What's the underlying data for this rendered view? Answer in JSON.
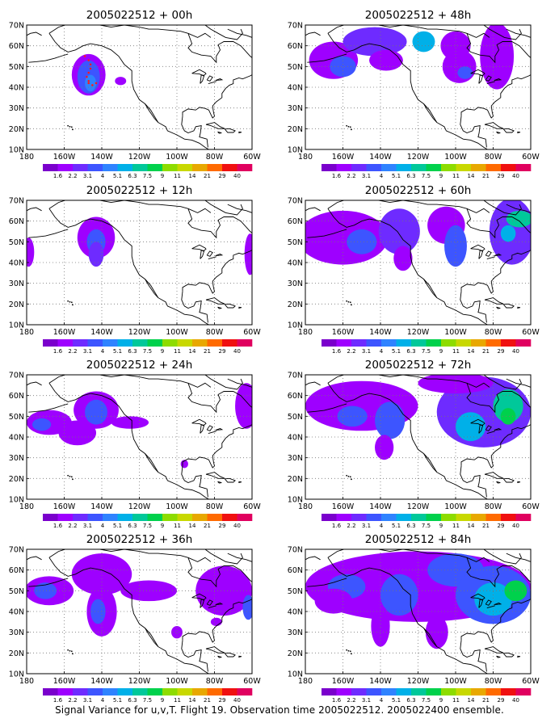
{
  "caption": "Signal Variance for u,v,T. Flight 19. Observation time 2005022512. 2005022400 ensemble.",
  "colors": {
    "scale": [
      "#7a00cc",
      "#9e00ff",
      "#6e2bff",
      "#3d55ff",
      "#2f83ff",
      "#00b0e8",
      "#00c89a",
      "#00d14c",
      "#8ddc00",
      "#c8d800",
      "#e8a800",
      "#ff6a00",
      "#f01010",
      "#e0005f"
    ],
    "coast": "#000000",
    "grid": "#777777",
    "obs_markers": "#ff1a1a"
  },
  "axes": {
    "lat_labels": [
      "10N",
      "20N",
      "30N",
      "40N",
      "50N",
      "60N",
      "70N"
    ],
    "lon_labels": [
      "180",
      "160W",
      "140W",
      "120W",
      "100W",
      "80W",
      "60W"
    ],
    "lon_range": [
      -180,
      -60
    ],
    "lat_range": [
      10,
      70
    ],
    "grid": "dotted"
  },
  "colorbar_labels": [
    "1.6",
    "2.2",
    "3.1",
    "4",
    "5.1",
    "6.3",
    "7.5",
    "9",
    "11",
    "14",
    "21",
    "29",
    "40"
  ],
  "chart_data": [
    {
      "type": "heatmap",
      "title": "2005022512 + 00h",
      "blobs": [
        {
          "lon": -147,
          "lat": 46,
          "rlon": 9,
          "rlat": 10,
          "level": 1
        },
        {
          "lon": -147,
          "lat": 45,
          "rlon": 6,
          "rlat": 8,
          "level": 3
        },
        {
          "lon": -146,
          "lat": 42,
          "rlon": 3,
          "rlat": 4,
          "level": 4
        },
        {
          "lon": -130,
          "lat": 43,
          "rlon": 3,
          "rlat": 2,
          "level": 1
        }
      ]
    },
    {
      "type": "heatmap",
      "title": "2005022512 + 48h",
      "blobs": [
        {
          "lon": -165,
          "lat": 53,
          "rlon": 13,
          "rlat": 9,
          "level": 1
        },
        {
          "lon": -160,
          "lat": 50,
          "rlon": 7,
          "rlat": 5,
          "level": 3
        },
        {
          "lon": -143,
          "lat": 62,
          "rlon": 17,
          "rlat": 7,
          "level": 2
        },
        {
          "lon": -137,
          "lat": 53,
          "rlon": 9,
          "rlat": 5,
          "level": 1
        },
        {
          "lon": -117,
          "lat": 62,
          "rlon": 6,
          "rlat": 5,
          "level": 5
        },
        {
          "lon": -100,
          "lat": 60,
          "rlon": 8,
          "rlat": 7,
          "level": 1
        },
        {
          "lon": -98,
          "lat": 50,
          "rlon": 9,
          "rlat": 8,
          "level": 1
        },
        {
          "lon": -95,
          "lat": 47,
          "rlon": 4,
          "rlat": 3,
          "level": 3
        },
        {
          "lon": -78,
          "lat": 55,
          "rlon": 9,
          "rlat": 16,
          "level": 1
        }
      ]
    },
    {
      "type": "heatmap",
      "title": "2005022512 + 12h",
      "blobs": [
        {
          "lon": -179,
          "lat": 45,
          "rlon": 3,
          "rlat": 7,
          "level": 1
        },
        {
          "lon": -143,
          "lat": 52,
          "rlon": 10,
          "rlat": 10,
          "level": 1
        },
        {
          "lon": -143,
          "lat": 50,
          "rlon": 5,
          "rlat": 6,
          "level": 3
        },
        {
          "lon": -143,
          "lat": 44,
          "rlon": 4,
          "rlat": 6,
          "level": 2
        },
        {
          "lon": -61,
          "lat": 44,
          "rlon": 3,
          "rlat": 10,
          "level": 1
        }
      ]
    },
    {
      "type": "heatmap",
      "title": "2005022512 + 60h",
      "blobs": [
        {
          "lon": -160,
          "lat": 52,
          "rlon": 24,
          "rlat": 13,
          "level": 1
        },
        {
          "lon": -150,
          "lat": 50,
          "rlon": 8,
          "rlat": 6,
          "level": 3
        },
        {
          "lon": -130,
          "lat": 55,
          "rlon": 11,
          "rlat": 11,
          "level": 2
        },
        {
          "lon": -128,
          "lat": 42,
          "rlon": 5,
          "rlat": 6,
          "level": 1
        },
        {
          "lon": -105,
          "lat": 58,
          "rlon": 10,
          "rlat": 9,
          "level": 1
        },
        {
          "lon": -100,
          "lat": 48,
          "rlon": 6,
          "rlat": 10,
          "level": 3
        },
        {
          "lon": -70,
          "lat": 55,
          "rlon": 12,
          "rlat": 16,
          "level": 2
        },
        {
          "lon": -66,
          "lat": 61,
          "rlon": 7,
          "rlat": 4,
          "level": 6
        },
        {
          "lon": -72,
          "lat": 54,
          "rlon": 4,
          "rlat": 4,
          "level": 5
        }
      ]
    },
    {
      "type": "heatmap",
      "title": "2005022512 + 24h",
      "blobs": [
        {
          "lon": -168,
          "lat": 47,
          "rlon": 12,
          "rlat": 6,
          "level": 1
        },
        {
          "lon": -172,
          "lat": 46,
          "rlon": 5,
          "rlat": 3,
          "level": 3
        },
        {
          "lon": -153,
          "lat": 42,
          "rlon": 10,
          "rlat": 6,
          "level": 1
        },
        {
          "lon": -143,
          "lat": 53,
          "rlon": 12,
          "rlat": 9,
          "level": 1
        },
        {
          "lon": -143,
          "lat": 52,
          "rlon": 6,
          "rlat": 6,
          "level": 3
        },
        {
          "lon": -125,
          "lat": 47,
          "rlon": 10,
          "rlat": 3,
          "level": 1
        },
        {
          "lon": -63,
          "lat": 55,
          "rlon": 6,
          "rlat": 11,
          "level": 1
        },
        {
          "lon": -96,
          "lat": 27,
          "rlon": 2,
          "rlat": 2,
          "level": 1
        }
      ]
    },
    {
      "type": "heatmap",
      "title": "2005022512 + 72h",
      "blobs": [
        {
          "lon": -150,
          "lat": 55,
          "rlon": 30,
          "rlat": 12,
          "level": 1
        },
        {
          "lon": -155,
          "lat": 50,
          "rlon": 8,
          "rlat": 5,
          "level": 3
        },
        {
          "lon": -135,
          "lat": 48,
          "rlon": 8,
          "rlat": 9,
          "level": 3
        },
        {
          "lon": -138,
          "lat": 35,
          "rlon": 5,
          "rlat": 6,
          "level": 1
        },
        {
          "lon": -85,
          "lat": 52,
          "rlon": 25,
          "rlat": 17,
          "level": 2
        },
        {
          "lon": -92,
          "lat": 45,
          "rlon": 8,
          "rlat": 7,
          "level": 5
        },
        {
          "lon": -72,
          "lat": 55,
          "rlon": 8,
          "rlat": 8,
          "level": 6
        },
        {
          "lon": -72,
          "lat": 50,
          "rlon": 4,
          "rlat": 4,
          "level": 7
        },
        {
          "lon": -100,
          "lat": 66,
          "rlon": 20,
          "rlat": 5,
          "level": 1
        }
      ]
    },
    {
      "type": "heatmap",
      "title": "2005022512 + 36h",
      "blobs": [
        {
          "lon": -168,
          "lat": 50,
          "rlon": 13,
          "rlat": 7,
          "level": 1
        },
        {
          "lon": -170,
          "lat": 50,
          "rlon": 6,
          "rlat": 4,
          "level": 3
        },
        {
          "lon": -140,
          "lat": 58,
          "rlon": 16,
          "rlat": 10,
          "level": 1
        },
        {
          "lon": -140,
          "lat": 40,
          "rlon": 8,
          "rlat": 12,
          "level": 1
        },
        {
          "lon": -142,
          "lat": 40,
          "rlon": 4,
          "rlat": 6,
          "level": 3
        },
        {
          "lon": -115,
          "lat": 50,
          "rlon": 15,
          "rlat": 5,
          "level": 1
        },
        {
          "lon": -75,
          "lat": 50,
          "rlon": 15,
          "rlat": 12,
          "level": 1
        },
        {
          "lon": -62,
          "lat": 42,
          "rlon": 3,
          "rlat": 6,
          "level": 3
        },
        {
          "lon": -100,
          "lat": 30,
          "rlon": 3,
          "rlat": 3,
          "level": 1
        },
        {
          "lon": -79,
          "lat": 35,
          "rlon": 3,
          "rlat": 2,
          "level": 1
        }
      ]
    },
    {
      "type": "heatmap",
      "title": "2005022512 + 84h",
      "blobs": [
        {
          "lon": -120,
          "lat": 52,
          "rlon": 60,
          "rlat": 17,
          "level": 1
        },
        {
          "lon": -158,
          "lat": 52,
          "rlon": 10,
          "rlat": 6,
          "level": 3
        },
        {
          "lon": -130,
          "lat": 48,
          "rlon": 10,
          "rlat": 10,
          "level": 3
        },
        {
          "lon": -140,
          "lat": 33,
          "rlon": 5,
          "rlat": 10,
          "level": 1
        },
        {
          "lon": -100,
          "lat": 60,
          "rlon": 15,
          "rlat": 8,
          "level": 3
        },
        {
          "lon": -80,
          "lat": 48,
          "rlon": 20,
          "rlat": 14,
          "level": 3
        },
        {
          "lon": -80,
          "lat": 46,
          "rlon": 10,
          "rlat": 8,
          "level": 5
        },
        {
          "lon": -68,
          "lat": 50,
          "rlon": 6,
          "rlat": 5,
          "level": 7
        },
        {
          "lon": -110,
          "lat": 30,
          "rlon": 6,
          "rlat": 8,
          "level": 1
        },
        {
          "lon": -165,
          "lat": 45,
          "rlon": 10,
          "rlat": 6,
          "level": 1
        }
      ]
    }
  ]
}
